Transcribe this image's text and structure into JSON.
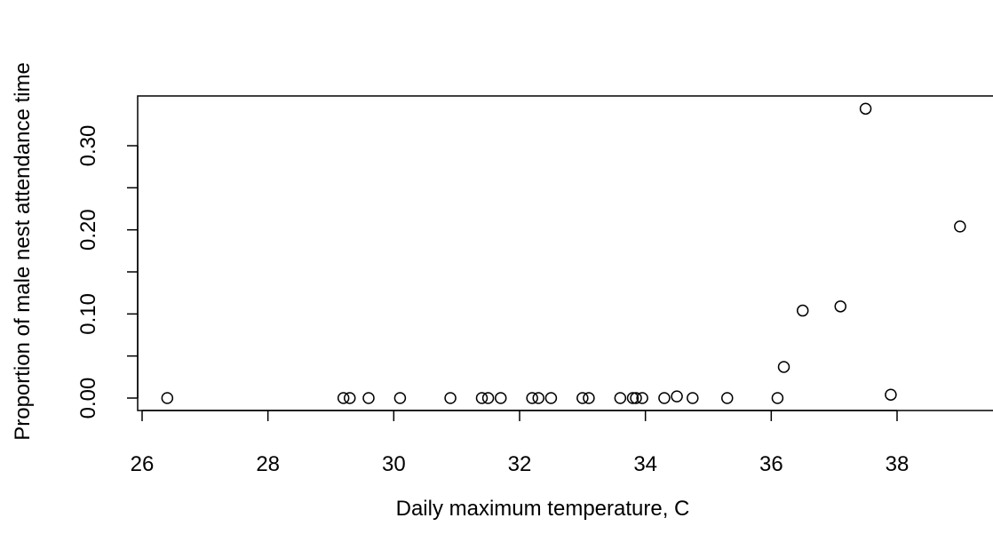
{
  "chart_data": {
    "type": "scatter",
    "title": "",
    "xlabel": "Daily maximum temperature, C",
    "ylabel": "Proportion of male nest attendance time",
    "xlim": [
      26,
      39.2
    ],
    "ylim": [
      0,
      0.35
    ],
    "x_ticks": [
      26,
      28,
      30,
      32,
      34,
      36,
      38
    ],
    "x_tick_labels": [
      "26",
      "28",
      "30",
      "32",
      "34",
      "36",
      "38"
    ],
    "y_ticks": [
      0.0,
      0.05,
      0.1,
      0.15,
      0.2,
      0.25,
      0.3
    ],
    "y_labeled_ticks": [
      0.0,
      0.1,
      0.2,
      0.3
    ],
    "y_tick_labels": [
      "0.00",
      "0.10",
      "0.20",
      "0.30"
    ],
    "grid": false,
    "legend": "none",
    "marker": "open-circle",
    "point_color": "#000000",
    "points": [
      {
        "x": 26.4,
        "y": 0.0
      },
      {
        "x": 29.2,
        "y": 0.0
      },
      {
        "x": 29.3,
        "y": 0.0
      },
      {
        "x": 29.6,
        "y": 0.0
      },
      {
        "x": 30.1,
        "y": 0.0
      },
      {
        "x": 30.9,
        "y": 0.0
      },
      {
        "x": 31.4,
        "y": 0.0
      },
      {
        "x": 31.5,
        "y": 0.0
      },
      {
        "x": 31.7,
        "y": 0.0
      },
      {
        "x": 32.2,
        "y": 0.0
      },
      {
        "x": 32.3,
        "y": 0.0
      },
      {
        "x": 32.5,
        "y": 0.0
      },
      {
        "x": 33.0,
        "y": 0.0
      },
      {
        "x": 33.1,
        "y": 0.0
      },
      {
        "x": 33.6,
        "y": 0.0
      },
      {
        "x": 33.8,
        "y": 0.0
      },
      {
        "x": 33.85,
        "y": 0.0
      },
      {
        "x": 33.95,
        "y": 0.0
      },
      {
        "x": 34.3,
        "y": 0.0
      },
      {
        "x": 34.5,
        "y": 0.002
      },
      {
        "x": 34.75,
        "y": 0.0
      },
      {
        "x": 35.3,
        "y": 0.0
      },
      {
        "x": 36.1,
        "y": 0.0
      },
      {
        "x": 36.2,
        "y": 0.037
      },
      {
        "x": 36.5,
        "y": 0.104
      },
      {
        "x": 37.1,
        "y": 0.109
      },
      {
        "x": 37.5,
        "y": 0.344
      },
      {
        "x": 37.9,
        "y": 0.004
      },
      {
        "x": 39.0,
        "y": 0.204
      }
    ]
  }
}
